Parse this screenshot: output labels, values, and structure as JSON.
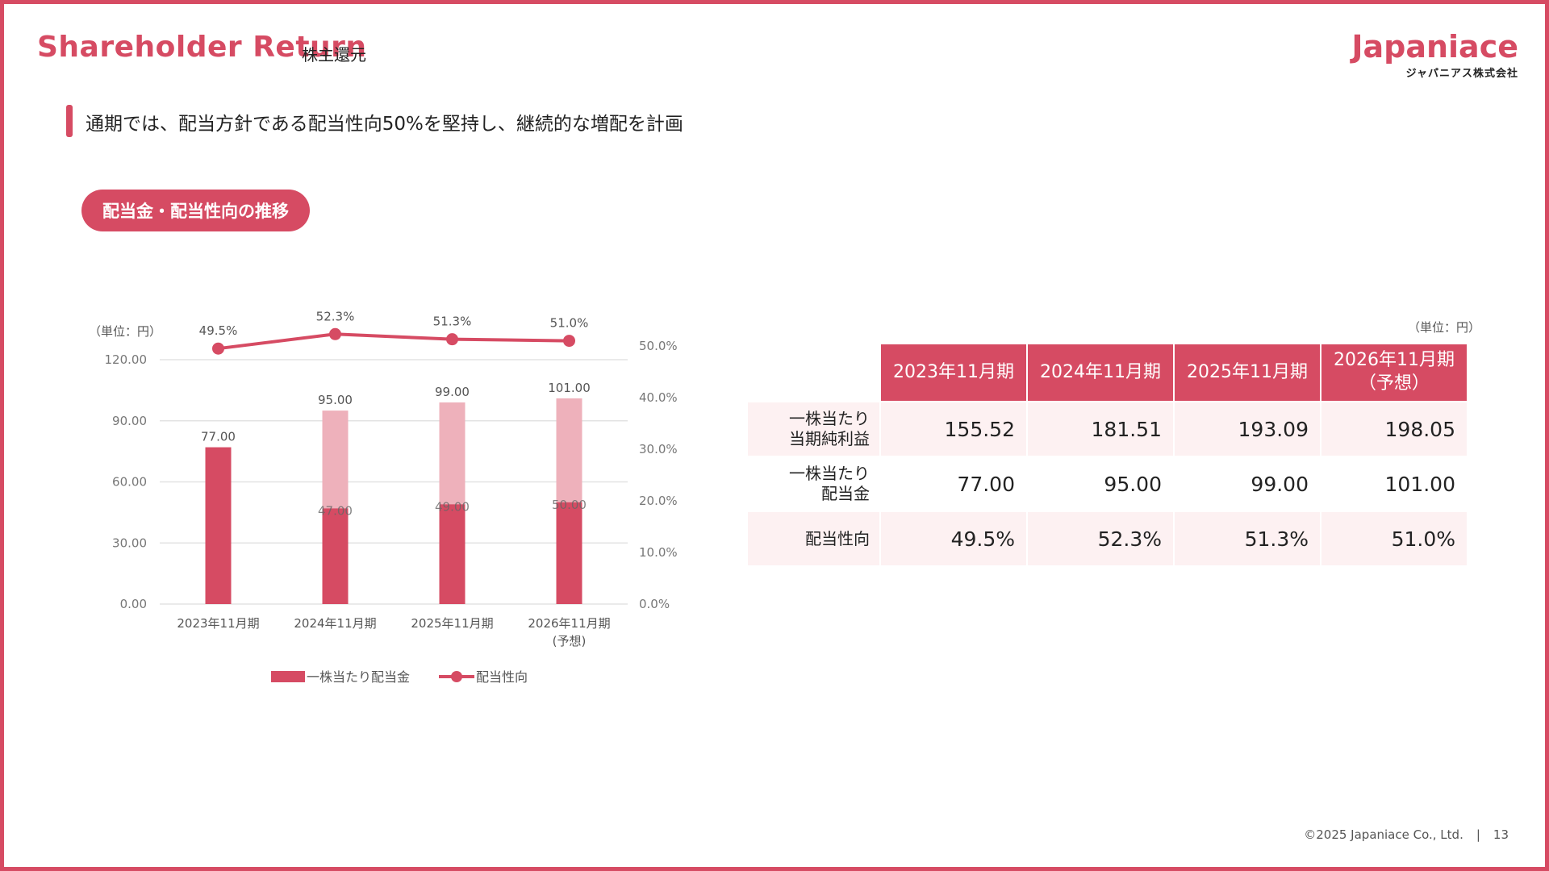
{
  "header": {
    "title_en": "Shareholder Return",
    "title_ja": "株主還元",
    "logo_main": "Japaniace",
    "logo_sub": "ジャパニアス株式会社"
  },
  "headline": "通期では、配当方針である配当性向50%を堅持し、継続的な増配を計画",
  "section_pill": "配当金・配当性向の推移",
  "colors": {
    "accent": "#d64b63",
    "bar_light": "#eeb1bb",
    "row_shade": "#fdf1f2"
  },
  "chart_data": {
    "type": "bar",
    "unit_label": "（単位：円）",
    "categories": [
      "2023年11月期",
      "2024年11月期",
      "2025年11月期",
      "2026年11月期"
    ],
    "category_sublabels": [
      "",
      "",
      "",
      "(予想)"
    ],
    "series": [
      {
        "name": "一株当たり配当金",
        "type": "bar",
        "values": [
          77.0,
          95.0,
          99.0,
          101.0
        ],
        "labels": [
          "77.00",
          "95.00",
          "99.00",
          "101.00"
        ]
      },
      {
        "type": "bar",
        "values": [
          null,
          47.0,
          49.0,
          50.0
        ],
        "labels": [
          "",
          "47.00",
          "49.00",
          "50.00"
        ]
      },
      {
        "name": "配当性向",
        "type": "line",
        "axis": "right",
        "values": [
          49.5,
          52.3,
          51.3,
          51.0
        ],
        "labels": [
          "49.5%",
          "52.3%",
          "51.3%",
          "51.0%"
        ]
      }
    ],
    "y_left": {
      "ticks": [
        "0.00",
        "30.00",
        "60.00",
        "90.00",
        "120.00"
      ],
      "ylim": [
        0,
        120
      ]
    },
    "y_right": {
      "ticks": [
        "0.0%",
        "10.0%",
        "20.0%",
        "30.0%",
        "40.0%",
        "50.0%"
      ],
      "ylim": [
        0,
        50
      ]
    },
    "grid": true,
    "legend_position": "bottom"
  },
  "table": {
    "unit_label": "（単位：円）",
    "headers": [
      "2023年11月期",
      "2024年11月期",
      "2025年11月期",
      "2026年11月期"
    ],
    "header_sub": [
      "",
      "",
      "",
      "（予想）"
    ],
    "rows": [
      {
        "label_line1": "一株当たり",
        "label_line2": "当期純利益",
        "values": [
          "155.52",
          "181.51",
          "193.09",
          "198.05"
        ]
      },
      {
        "label_line1": "一株当たり",
        "label_line2": "配当金",
        "values": [
          "77.00",
          "95.00",
          "99.00",
          "101.00"
        ]
      },
      {
        "label_line1": "配当性向",
        "label_line2": "",
        "values": [
          "49.5%",
          "52.3%",
          "51.3%",
          "51.0%"
        ]
      }
    ]
  },
  "footer": {
    "copyright": "©2025 Japaniace Co., Ltd.",
    "separator": "|",
    "page": "13"
  }
}
